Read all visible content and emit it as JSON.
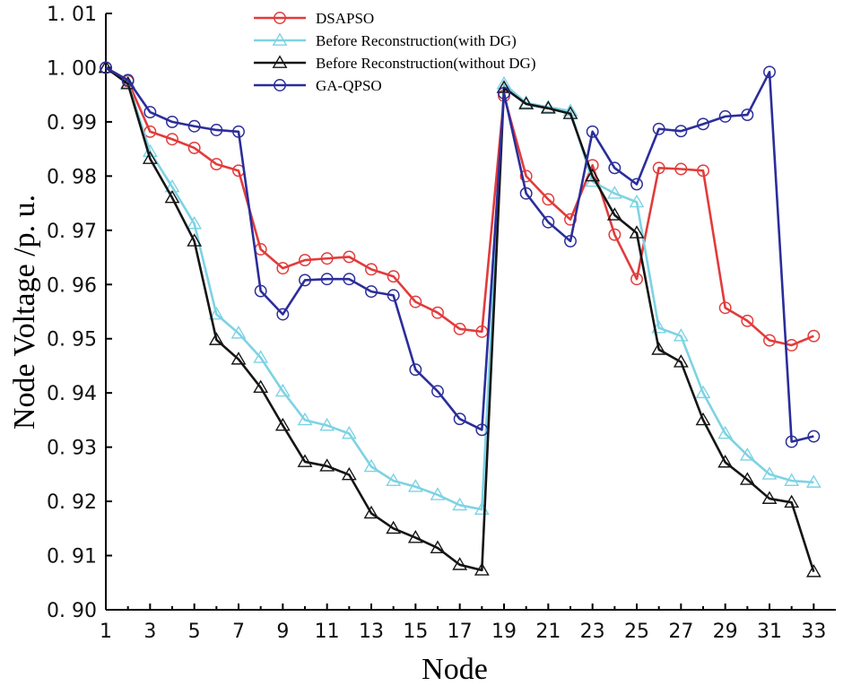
{
  "chart_data": {
    "type": "line",
    "xlabel": "Node",
    "ylabel": "Node Voltage /p. u.",
    "xlim": [
      1,
      34
    ],
    "ylim": [
      0.9,
      1.01
    ],
    "x": [
      1,
      2,
      3,
      4,
      5,
      6,
      7,
      8,
      9,
      10,
      11,
      12,
      13,
      14,
      15,
      16,
      17,
      18,
      19,
      20,
      21,
      22,
      23,
      24,
      25,
      26,
      27,
      28,
      29,
      30,
      31,
      32,
      33
    ],
    "x_tick_labels": [
      "1",
      "3",
      "5",
      "7",
      "9",
      "11",
      "13",
      "15",
      "17",
      "19",
      "21",
      "23",
      "25",
      "27",
      "29",
      "31",
      "33"
    ],
    "y_tick_labels": [
      "0.90",
      "0.91",
      "0.92",
      "0.93",
      "0.94",
      "0.95",
      "0.96",
      "0.97",
      "0.98",
      "0.99",
      "1.00",
      "1.01"
    ],
    "legend_position": "top",
    "series": [
      {
        "name": "DSAPSO",
        "color": "#e23b3b",
        "marker": "circle",
        "values": [
          1.0,
          0.9975,
          0.9882,
          0.9868,
          0.9852,
          0.9822,
          0.981,
          0.9665,
          0.963,
          0.9645,
          0.9648,
          0.9651,
          0.9628,
          0.9615,
          0.9568,
          0.9548,
          0.9518,
          0.9513,
          0.9948,
          0.98,
          0.9757,
          0.972,
          0.982,
          0.9692,
          0.961,
          0.9815,
          0.9813,
          0.981,
          0.9557,
          0.9533,
          0.9497,
          0.9488,
          0.9505
        ]
      },
      {
        "name": "Before Reconstruction(with DG)",
        "color": "#7dd3e3",
        "marker": "triangle",
        "values": [
          1.0,
          0.9972,
          0.9845,
          0.978,
          0.9712,
          0.9545,
          0.951,
          0.9465,
          0.9403,
          0.935,
          0.934,
          0.9325,
          0.9264,
          0.9238,
          0.9227,
          0.9212,
          0.9193,
          0.9185,
          0.997,
          0.9935,
          0.9927,
          0.992,
          0.979,
          0.9768,
          0.9752,
          0.952,
          0.9505,
          0.94,
          0.9325,
          0.9285,
          0.925,
          0.9238,
          0.9235
        ]
      },
      {
        "name": "Before Reconstruction(without DG)",
        "color": "#151515",
        "marker": "triangle",
        "values": [
          1.0,
          0.997,
          0.9832,
          0.976,
          0.968,
          0.9498,
          0.9462,
          0.941,
          0.934,
          0.9273,
          0.9265,
          0.9249,
          0.9178,
          0.915,
          0.9133,
          0.9114,
          0.9083,
          0.9073,
          0.9963,
          0.9933,
          0.9925,
          0.9915,
          0.98,
          0.9728,
          0.9695,
          0.948,
          0.9457,
          0.935,
          0.9272,
          0.924,
          0.9205,
          0.9198,
          0.907
        ]
      },
      {
        "name": "GA-QPSO",
        "color": "#2b2d9a",
        "marker": "circle",
        "values": [
          1.0,
          0.9977,
          0.9918,
          0.99,
          0.9892,
          0.9885,
          0.9882,
          0.9588,
          0.9545,
          0.9608,
          0.961,
          0.961,
          0.9587,
          0.958,
          0.9443,
          0.9403,
          0.9352,
          0.9332,
          0.9953,
          0.9768,
          0.9715,
          0.968,
          0.9882,
          0.9815,
          0.9785,
          0.9887,
          0.9883,
          0.9896,
          0.991,
          0.9913,
          0.9992,
          0.931,
          0.932
        ]
      }
    ]
  }
}
